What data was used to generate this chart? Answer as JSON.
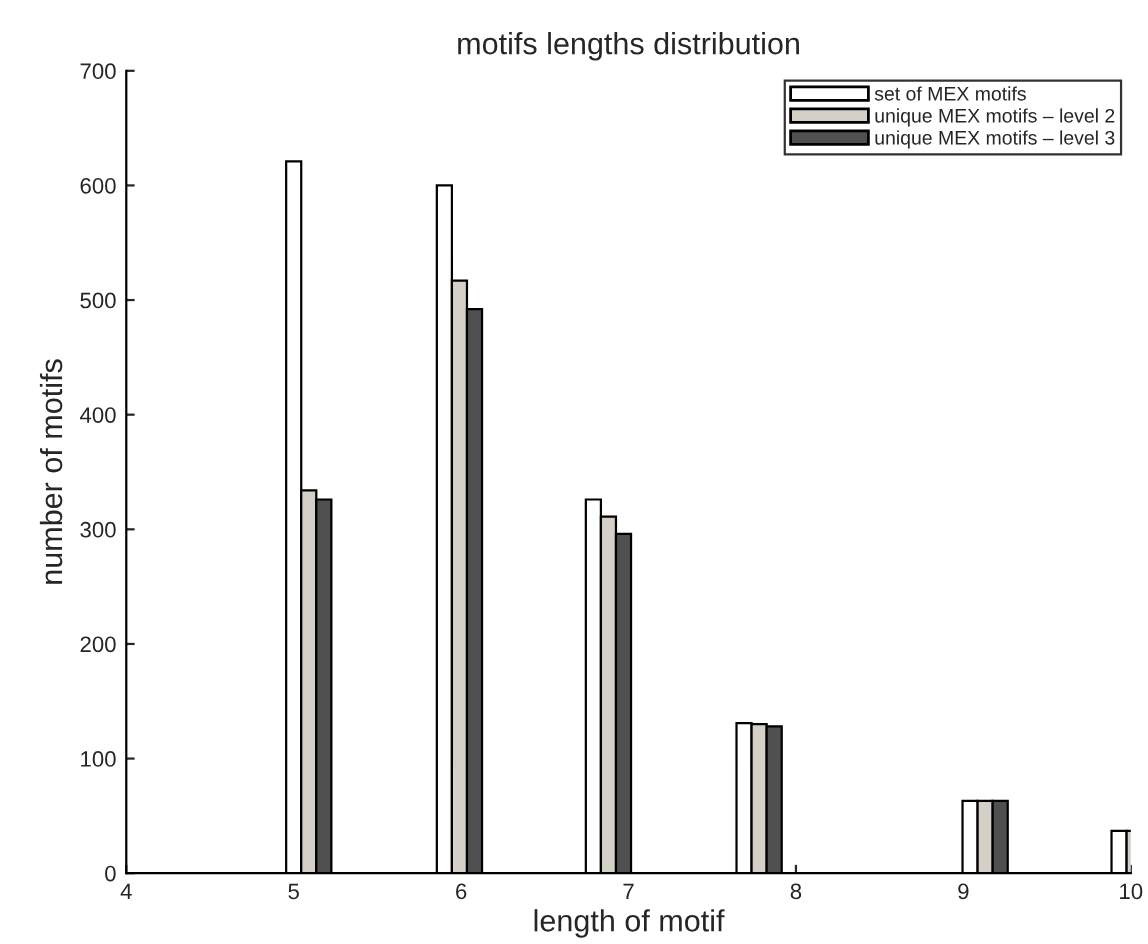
{
  "chart_data": {
    "type": "bar",
    "title": "motifs lengths distribution",
    "xlabel": "length of motif",
    "ylabel": "number of motifs",
    "x": [
      5.0,
      5.9,
      6.79,
      7.69,
      9.04,
      9.93
    ],
    "series": [
      {
        "name": "set of MEX motifs",
        "color": "#ffffff",
        "values": [
          621,
          600,
          326,
          131,
          63,
          37
        ]
      },
      {
        "name": "unique MEX motifs – level 2",
        "color": "#d4d0c8",
        "values": [
          334,
          517,
          311,
          130,
          63,
          37
        ]
      },
      {
        "name": "unique MEX motifs – level 3",
        "color": "#505050",
        "values": [
          326,
          492,
          296,
          128,
          63,
          null
        ]
      }
    ],
    "xlim": [
      4,
      10
    ],
    "xticks": [
      4,
      5,
      6,
      7,
      8,
      9,
      10
    ],
    "ylim": [
      0,
      700
    ],
    "yticks": [
      0,
      100,
      200,
      300,
      400,
      500,
      600,
      700
    ],
    "grid": false,
    "legend": "top right"
  }
}
